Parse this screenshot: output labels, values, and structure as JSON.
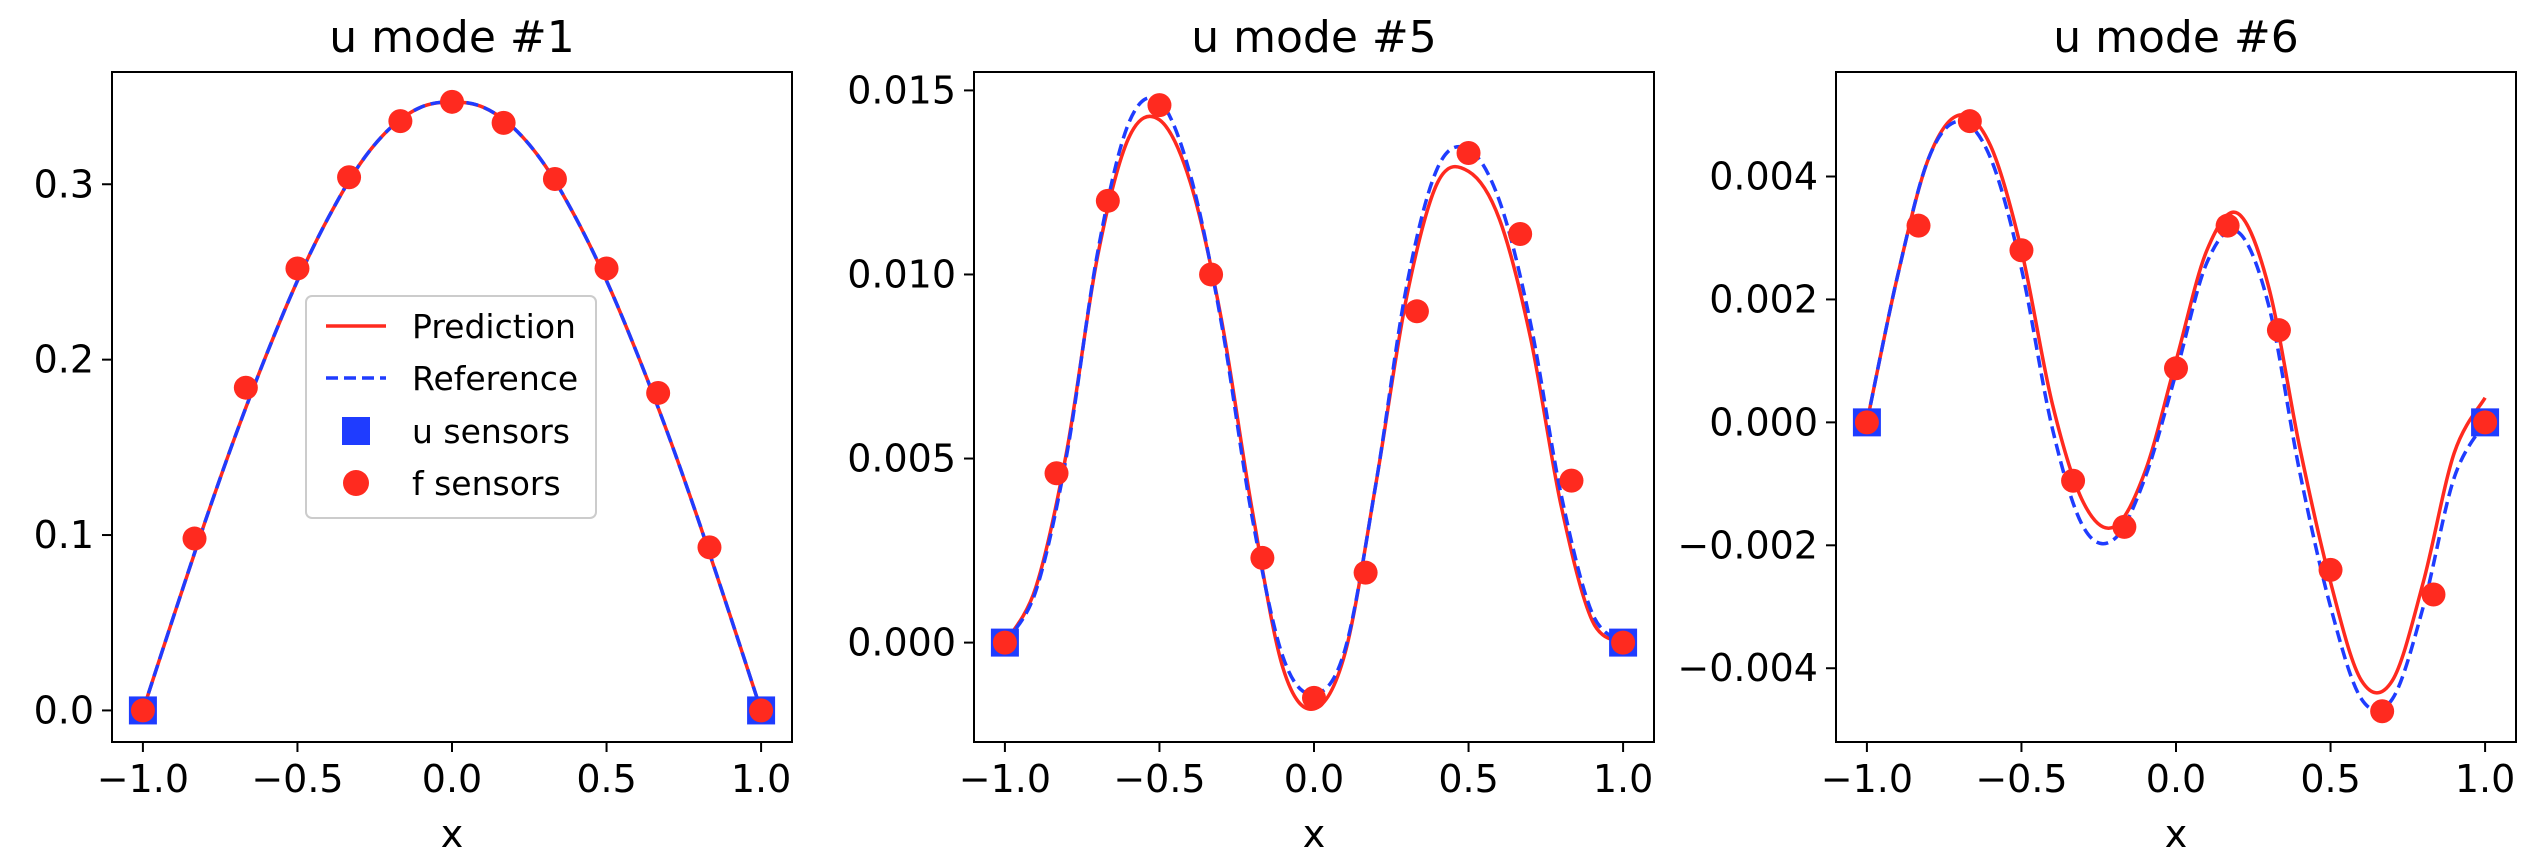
{
  "figure": {
    "legend_labels": {
      "prediction": "Prediction",
      "reference": "Reference",
      "u_sensors": "u sensors",
      "f_sensors": "f sensors"
    }
  },
  "colors": {
    "prediction": "#ff2a1f",
    "reference": "#1f3cff",
    "u_sensor": "#1f3cff",
    "f_sensor": "#ff2a1f"
  },
  "chart_data": [
    {
      "type": "line",
      "title": "u mode #1",
      "xlabel": "x",
      "ylabel": "",
      "xlim": [
        -1.1,
        1.1
      ],
      "ylim": [
        -0.018,
        0.364
      ],
      "xticks": [
        -1.0,
        -0.5,
        0.0,
        0.5,
        1.0
      ],
      "xtick_labels": [
        "−1.0",
        "−0.5",
        "0.0",
        "0.5",
        "1.0"
      ],
      "yticks": [
        0.0,
        0.1,
        0.2,
        0.3
      ],
      "ytick_labels": [
        "0.0",
        "0.1",
        "0.2",
        "0.3"
      ],
      "grid": false,
      "legend": "center-left",
      "x": [
        -1.0,
        -0.9,
        -0.8,
        -0.7,
        -0.6,
        -0.5,
        -0.4,
        -0.3,
        -0.2,
        -0.1,
        0.0,
        0.1,
        0.2,
        0.3,
        0.4,
        0.5,
        0.6,
        0.7,
        0.8,
        0.9,
        1.0
      ],
      "series": [
        {
          "name": "Prediction",
          "style": "solid",
          "values": [
            0.0,
            0.054,
            0.107,
            0.157,
            0.203,
            0.245,
            0.281,
            0.311,
            0.332,
            0.344,
            0.347,
            0.344,
            0.332,
            0.311,
            0.281,
            0.245,
            0.203,
            0.157,
            0.107,
            0.054,
            0.0
          ]
        },
        {
          "name": "Reference",
          "style": "dashed",
          "values": [
            0.0,
            0.054,
            0.107,
            0.157,
            0.203,
            0.245,
            0.281,
            0.311,
            0.332,
            0.344,
            0.347,
            0.344,
            0.332,
            0.311,
            0.281,
            0.245,
            0.203,
            0.157,
            0.107,
            0.054,
            0.0
          ]
        }
      ],
      "u_sensors": {
        "x": [
          -1.0,
          1.0
        ],
        "y": [
          0.0,
          0.0
        ]
      },
      "f_sensors": {
        "x": [
          -1.0,
          -0.833,
          -0.667,
          -0.5,
          -0.333,
          -0.167,
          0.0,
          0.167,
          0.333,
          0.5,
          0.667,
          0.833,
          1.0
        ],
        "y": [
          0.0,
          0.098,
          0.184,
          0.252,
          0.304,
          0.336,
          0.347,
          0.335,
          0.303,
          0.252,
          0.181,
          0.093,
          0.0
        ]
      }
    },
    {
      "type": "line",
      "title": "u mode #5",
      "xlabel": "x",
      "ylabel": "",
      "xlim": [
        -1.1,
        1.1
      ],
      "ylim": [
        -0.0027,
        0.0155
      ],
      "xticks": [
        -1.0,
        -0.5,
        0.0,
        0.5,
        1.0
      ],
      "xtick_labels": [
        "−1.0",
        "−0.5",
        "0.0",
        "0.5",
        "1.0"
      ],
      "yticks": [
        0.0,
        0.005,
        0.01,
        0.015
      ],
      "ytick_labels": [
        "0.000",
        "0.005",
        "0.010",
        "0.015"
      ],
      "grid": false,
      "x": [
        -1.0,
        -0.9,
        -0.8,
        -0.7,
        -0.6,
        -0.5,
        -0.4,
        -0.3,
        -0.2,
        -0.1,
        0.0,
        0.1,
        0.2,
        0.3,
        0.4,
        0.5,
        0.6,
        0.7,
        0.8,
        0.9,
        1.0
      ],
      "series": [
        {
          "name": "Prediction",
          "style": "solid",
          "values": [
            0.0,
            0.0015,
            0.0052,
            0.0105,
            0.0137,
            0.0142,
            0.0125,
            0.0088,
            0.0036,
            -0.0007,
            -0.0018,
            -0.0003,
            0.0043,
            0.0094,
            0.0125,
            0.0128,
            0.0115,
            0.0083,
            0.0037,
            0.0006,
            0.0
          ]
        },
        {
          "name": "Reference",
          "style": "dashed",
          "values": [
            0.0,
            0.0014,
            0.0051,
            0.0106,
            0.0141,
            0.0147,
            0.0127,
            0.0087,
            0.0034,
            -0.0004,
            -0.0014,
            -0.0002,
            0.0043,
            0.0097,
            0.0129,
            0.0134,
            0.012,
            0.0087,
            0.004,
            0.0008,
            0.0
          ]
        }
      ],
      "u_sensors": {
        "x": [
          -1.0,
          1.0
        ],
        "y": [
          0.0,
          0.0
        ]
      },
      "f_sensors": {
        "x": [
          -1.0,
          -0.833,
          -0.667,
          -0.5,
          -0.333,
          -0.167,
          0.0,
          0.167,
          0.333,
          0.5,
          0.667,
          0.833,
          1.0
        ],
        "y": [
          0.0,
          0.0046,
          0.012,
          0.0146,
          0.01,
          0.0023,
          -0.0015,
          0.0019,
          0.009,
          0.0133,
          0.0111,
          0.0044,
          0.0
        ]
      }
    },
    {
      "type": "line",
      "title": "u mode #6",
      "xlabel": "x",
      "ylabel": "",
      "xlim": [
        -1.1,
        1.1
      ],
      "ylim": [
        -0.0052,
        0.0057
      ],
      "xticks": [
        -1.0,
        -0.5,
        0.0,
        0.5,
        1.0
      ],
      "xtick_labels": [
        "−1.0",
        "−0.5",
        "0.0",
        "0.5",
        "1.0"
      ],
      "yticks": [
        -0.004,
        -0.002,
        0.0,
        0.002,
        0.004
      ],
      "ytick_labels": [
        "−0.004",
        "−0.002",
        "0.000",
        "0.002",
        "0.004"
      ],
      "grid": false,
      "x": [
        -1.0,
        -0.9,
        -0.8,
        -0.7,
        -0.6,
        -0.5,
        -0.4,
        -0.3,
        -0.2,
        -0.1,
        0.0,
        0.1,
        0.2,
        0.3,
        0.4,
        0.5,
        0.6,
        0.7,
        0.8,
        0.9,
        1.0
      ],
      "series": [
        {
          "name": "Prediction",
          "style": "solid",
          "values": [
            0.0,
            0.0024,
            0.0043,
            0.005,
            0.0045,
            0.0028,
            0.0003,
            -0.0013,
            -0.0017,
            -0.0008,
            0.001,
            0.0028,
            0.0034,
            0.0022,
            -0.0004,
            -0.0026,
            -0.0042,
            -0.0042,
            -0.0026,
            -0.0005,
            0.0004
          ]
        },
        {
          "name": "Reference",
          "style": "dashed",
          "values": [
            0.0,
            0.0024,
            0.0043,
            0.0049,
            0.0043,
            0.0025,
            -0.0001,
            -0.0017,
            -0.0019,
            -0.0009,
            0.0008,
            0.0026,
            0.0031,
            0.0019,
            -0.0008,
            -0.003,
            -0.0045,
            -0.0045,
            -0.003,
            -0.0009,
            0.0
          ]
        }
      ],
      "u_sensors": {
        "x": [
          -1.0,
          1.0
        ],
        "y": [
          0.0,
          0.0
        ]
      },
      "f_sensors": {
        "x": [
          -1.0,
          -0.833,
          -0.667,
          -0.5,
          -0.333,
          -0.167,
          0.0,
          0.167,
          0.333,
          0.5,
          0.667,
          0.833,
          1.0
        ],
        "y": [
          0.0,
          0.0032,
          0.0049,
          0.0028,
          -0.00095,
          -0.0017,
          0.00088,
          0.0032,
          0.0015,
          -0.0024,
          -0.0047,
          -0.0028,
          0.0
        ]
      }
    }
  ]
}
